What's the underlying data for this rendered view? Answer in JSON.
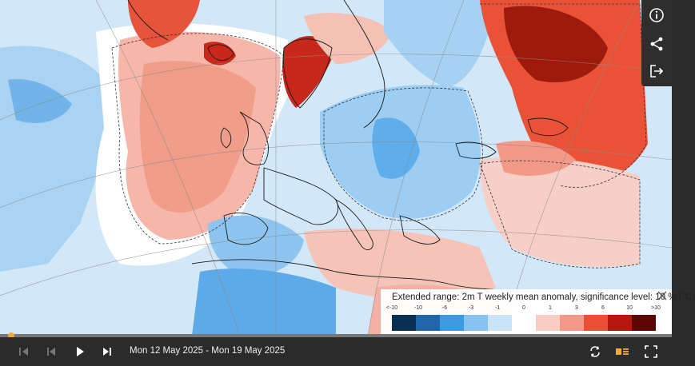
{
  "map": {
    "description_tag": "Europe 2m temperature anomaly map"
  },
  "legend": {
    "title": "Extended range: 2m T weekly mean anomaly, significance level: 10 % (°C)",
    "ticks": [
      "<-10",
      "-10",
      "-6",
      "-3",
      "-1",
      "0",
      "1",
      "3",
      "6",
      "10",
      ">10"
    ],
    "colors": [
      "#0b2f52",
      "#1f67a8",
      "#3c9be0",
      "#86c2ef",
      "#c9e4f8",
      "#ffffff",
      "#f8cdc3",
      "#f29a87",
      "#ea4f35",
      "#b5170d",
      "#5c0606"
    ]
  },
  "timeline": {
    "date_range": "Mon 12 May 2025 - Mon 19 May 2025"
  },
  "icons": {
    "info": "info-icon",
    "share": "share-icon",
    "export": "export-icon",
    "close": "close-icon",
    "first": "skip-first-icon",
    "prev": "step-back-icon",
    "play": "play-icon",
    "next": "step-forward-icon",
    "loop": "loop-icon",
    "settings": "layers-icon",
    "fullscreen": "fullscreen-icon"
  }
}
